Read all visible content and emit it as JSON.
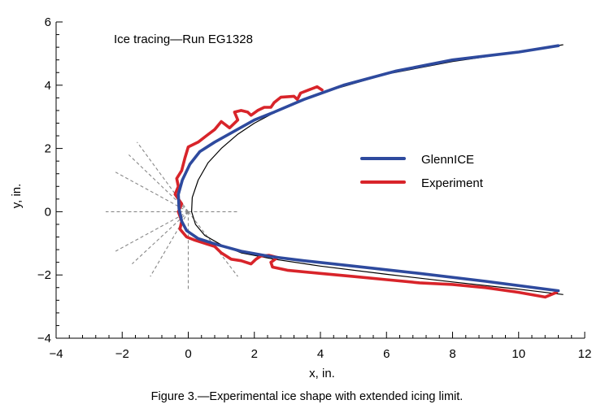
{
  "chart_data": {
    "type": "line",
    "annotation": "Ice tracing—Run EG1328",
    "xlabel": "x, in.",
    "ylabel": "y, in.",
    "xlim": [
      -4,
      12
    ],
    "ylim": [
      -4,
      6
    ],
    "x_ticks": [
      -4,
      -2,
      0,
      2,
      4,
      6,
      8,
      10,
      12
    ],
    "y_ticks": [
      -4,
      -2,
      0,
      2,
      4,
      6
    ],
    "x_tick_labels": [
      "−4",
      "−2",
      "0",
      "2",
      "4",
      "6",
      "8",
      "10",
      "12"
    ],
    "y_tick_labels": [
      "−4",
      "−2",
      "0",
      "2",
      "4",
      "6"
    ],
    "grid": false,
    "legend_position": "right",
    "colors": {
      "glennice": "#2e4a9e",
      "experiment": "#d8242a",
      "airfoil": "#000000",
      "rays": "#888888"
    },
    "series": [
      {
        "name": "GlennICE",
        "color": "#2e4a9e",
        "points": [
          [
            11.2,
            5.25
          ],
          [
            10,
            5.05
          ],
          [
            8,
            4.8
          ],
          [
            6.3,
            4.45
          ],
          [
            4.7,
            4.0
          ],
          [
            3.5,
            3.55
          ],
          [
            2.6,
            3.15
          ],
          [
            2.0,
            2.9
          ],
          [
            1.4,
            2.55
          ],
          [
            0.8,
            2.2
          ],
          [
            0.35,
            1.9
          ],
          [
            0.05,
            1.5
          ],
          [
            -0.18,
            1.0
          ],
          [
            -0.3,
            0.55
          ],
          [
            -0.28,
            0.1
          ],
          [
            -0.2,
            -0.3
          ],
          [
            -0.05,
            -0.6
          ],
          [
            0.3,
            -0.85
          ],
          [
            0.9,
            -1.05
          ],
          [
            1.6,
            -1.25
          ],
          [
            2.5,
            -1.42
          ],
          [
            3.5,
            -1.55
          ],
          [
            5,
            -1.72
          ],
          [
            7,
            -1.95
          ],
          [
            9,
            -2.2
          ],
          [
            11.2,
            -2.5
          ]
        ]
      },
      {
        "name": "Experiment",
        "color": "#d8242a",
        "points": [
          [
            4.05,
            3.85
          ],
          [
            3.9,
            3.95
          ],
          [
            3.4,
            3.75
          ],
          [
            3.3,
            3.55
          ],
          [
            3.2,
            3.65
          ],
          [
            2.8,
            3.62
          ],
          [
            2.6,
            3.45
          ],
          [
            2.5,
            3.3
          ],
          [
            2.3,
            3.3
          ],
          [
            2.1,
            3.2
          ],
          [
            1.9,
            3.05
          ],
          [
            1.8,
            3.15
          ],
          [
            1.6,
            3.2
          ],
          [
            1.4,
            3.15
          ],
          [
            1.5,
            2.9
          ],
          [
            1.25,
            2.65
          ],
          [
            1.0,
            2.85
          ],
          [
            0.8,
            2.6
          ],
          [
            0.55,
            2.4
          ],
          [
            0.3,
            2.2
          ],
          [
            0.0,
            2.05
          ],
          [
            -0.1,
            1.7
          ],
          [
            -0.2,
            1.3
          ],
          [
            -0.35,
            1.05
          ],
          [
            -0.3,
            0.8
          ],
          [
            -0.4,
            0.55
          ],
          [
            -0.2,
            0.25
          ],
          [
            -0.3,
            0.0
          ],
          [
            -0.2,
            -0.3
          ],
          [
            -0.25,
            -0.55
          ],
          [
            -0.05,
            -0.8
          ],
          [
            0.2,
            -0.9
          ],
          [
            0.5,
            -1.0
          ],
          [
            0.8,
            -1.1
          ],
          [
            1.0,
            -1.3
          ],
          [
            1.3,
            -1.5
          ],
          [
            1.6,
            -1.55
          ],
          [
            1.9,
            -1.65
          ],
          [
            2.05,
            -1.5
          ],
          [
            2.2,
            -1.4
          ],
          [
            2.45,
            -1.38
          ],
          [
            2.7,
            -1.45
          ],
          [
            2.5,
            -1.6
          ],
          [
            2.55,
            -1.75
          ],
          [
            3.0,
            -1.85
          ],
          [
            4.0,
            -1.95
          ],
          [
            5.0,
            -2.05
          ],
          [
            6.0,
            -2.15
          ],
          [
            7.0,
            -2.25
          ],
          [
            8.0,
            -2.3
          ],
          [
            9.0,
            -2.4
          ],
          [
            10.0,
            -2.55
          ],
          [
            10.8,
            -2.7
          ],
          [
            11.15,
            -2.55
          ]
        ]
      }
    ],
    "airfoil_contour": [
      [
        11.35,
        5.28
      ],
      [
        10,
        5.05
      ],
      [
        8,
        4.75
      ],
      [
        6,
        4.35
      ],
      [
        4,
        3.75
      ],
      [
        3,
        3.35
      ],
      [
        2,
        2.8
      ],
      [
        1.5,
        2.45
      ],
      [
        1.0,
        2.0
      ],
      [
        0.6,
        1.55
      ],
      [
        0.3,
        1.0
      ],
      [
        0.12,
        0.45
      ],
      [
        0.1,
        0.0
      ],
      [
        0.22,
        -0.4
      ],
      [
        0.5,
        -0.75
      ],
      [
        1.0,
        -1.05
      ],
      [
        1.6,
        -1.3
      ],
      [
        2.6,
        -1.5
      ],
      [
        4,
        -1.72
      ],
      [
        6,
        -1.98
      ],
      [
        8,
        -2.22
      ],
      [
        10,
        -2.45
      ],
      [
        11.35,
        -2.62
      ]
    ],
    "impingement_rays": [
      [
        [
          0,
          0
        ],
        [
          -1.55,
          2.2
        ]
      ],
      [
        [
          0,
          0
        ],
        [
          -1.8,
          1.8
        ]
      ],
      [
        [
          0,
          0
        ],
        [
          -2.2,
          1.25
        ]
      ],
      [
        [
          0,
          0
        ],
        [
          -2.5,
          0
        ]
      ],
      [
        [
          0,
          0
        ],
        [
          1.5,
          0
        ]
      ],
      [
        [
          0,
          0
        ],
        [
          -2.2,
          -1.25
        ]
      ],
      [
        [
          0,
          0
        ],
        [
          -1.7,
          -1.65
        ]
      ],
      [
        [
          0,
          0
        ],
        [
          -1.15,
          -2.05
        ]
      ],
      [
        [
          0,
          0
        ],
        [
          0,
          -2.5
        ]
      ],
      [
        [
          0,
          0
        ],
        [
          1.5,
          -2.05
        ]
      ]
    ]
  },
  "caption": "Figure 3.—Experimental ice shape with extended icing limit."
}
